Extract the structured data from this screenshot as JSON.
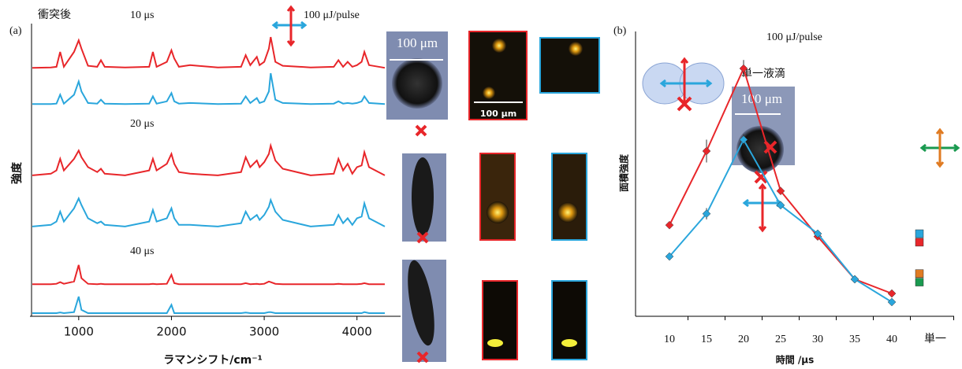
{
  "chart_data": [
    {
      "type": "spectra",
      "panel_label": "(a)",
      "x_label": "ラマンシフト/cm⁻¹",
      "y_label": "強度",
      "annotations": [
        "衝突後",
        "100 μJ/pulse",
        "100 μm",
        "100 μm"
      ],
      "xlim": [
        500,
        4300
      ],
      "xticks": [
        1000,
        2000,
        3000,
        4000
      ],
      "x": [
        500,
        700,
        760,
        800,
        840,
        950,
        1000,
        1030,
        1100,
        1200,
        1240,
        1280,
        1500,
        1760,
        1800,
        1840,
        1950,
        2000,
        2030,
        2080,
        2200,
        2500,
        2750,
        2800,
        2850,
        2920,
        2950,
        3000,
        3050,
        3070,
        3120,
        3200,
        3500,
        3750,
        3800,
        3850,
        3900,
        3950,
        4000,
        4050,
        4080,
        4130,
        4300
      ],
      "groups": [
        {
          "label": "10 μs",
          "series": [
            {
              "color": "#e8262a",
              "values": [
                0.02,
                0.03,
                0.05,
                0.5,
                0.05,
                0.5,
                0.85,
                0.6,
                0.08,
                0.05,
                0.25,
                0.05,
                0.03,
                0.05,
                0.5,
                0.05,
                0.2,
                0.55,
                0.3,
                0.05,
                0.1,
                0.03,
                0.05,
                0.4,
                0.1,
                0.35,
                0.1,
                0.2,
                0.6,
                0.95,
                0.2,
                0.08,
                0.03,
                0.05,
                0.25,
                0.05,
                0.2,
                0.05,
                0.1,
                0.2,
                0.5,
                0.1,
                0.02
              ]
            },
            {
              "color": "#2aa6dc",
              "values": [
                0.02,
                0.02,
                0.03,
                0.3,
                0.03,
                0.3,
                0.7,
                0.4,
                0.05,
                0.03,
                0.15,
                0.03,
                0.02,
                0.03,
                0.25,
                0.03,
                0.1,
                0.35,
                0.1,
                0.03,
                0.05,
                0.02,
                0.03,
                0.25,
                0.05,
                0.2,
                0.05,
                0.1,
                0.4,
                0.95,
                0.15,
                0.05,
                0.02,
                0.03,
                0.1,
                0.03,
                0.05,
                0.03,
                0.05,
                0.1,
                0.25,
                0.05,
                0.02
              ]
            }
          ]
        },
        {
          "label": "20 μs",
          "series": [
            {
              "color": "#e8262a",
              "values": [
                0.05,
                0.1,
                0.2,
                0.55,
                0.2,
                0.55,
                0.8,
                0.6,
                0.3,
                0.15,
                0.25,
                0.1,
                0.05,
                0.2,
                0.55,
                0.2,
                0.4,
                0.7,
                0.4,
                0.15,
                0.1,
                0.05,
                0.15,
                0.6,
                0.3,
                0.5,
                0.3,
                0.45,
                0.7,
                0.95,
                0.5,
                0.25,
                0.05,
                0.1,
                0.55,
                0.2,
                0.4,
                0.1,
                0.3,
                0.35,
                0.75,
                0.3,
                0.05
              ]
            },
            {
              "color": "#2aa6dc",
              "values": [
                0.05,
                0.1,
                0.2,
                0.5,
                0.2,
                0.6,
                0.9,
                0.7,
                0.3,
                0.15,
                0.2,
                0.1,
                0.05,
                0.2,
                0.55,
                0.2,
                0.3,
                0.6,
                0.3,
                0.1,
                0.1,
                0.05,
                0.15,
                0.5,
                0.25,
                0.4,
                0.25,
                0.4,
                0.65,
                0.85,
                0.5,
                0.25,
                0.05,
                0.1,
                0.4,
                0.15,
                0.3,
                0.1,
                0.3,
                0.35,
                0.75,
                0.3,
                0.05
              ]
            }
          ]
        },
        {
          "label": "40 μs",
          "series": [
            {
              "color": "#e8262a",
              "values": [
                0.02,
                0.02,
                0.03,
                0.08,
                0.03,
                0.1,
                0.6,
                0.2,
                0.03,
                0.02,
                0.03,
                0.02,
                0.02,
                0.02,
                0.03,
                0.02,
                0.03,
                0.3,
                0.05,
                0.02,
                0.02,
                0.02,
                0.02,
                0.05,
                0.02,
                0.03,
                0.02,
                0.03,
                0.1,
                0.08,
                0.03,
                0.02,
                0.02,
                0.02,
                0.03,
                0.02,
                0.02,
                0.02,
                0.02,
                0.03,
                0.05,
                0.02,
                0.02
              ]
            },
            {
              "color": "#2aa6dc",
              "values": [
                0,
                0,
                0,
                0.02,
                0,
                0.03,
                0.5,
                0.1,
                0,
                0,
                0,
                0,
                0,
                0,
                0,
                0,
                0,
                0.25,
                0,
                0,
                0,
                0,
                0,
                0.02,
                0,
                0,
                0,
                0,
                0.03,
                0.03,
                0,
                0,
                0,
                0,
                0,
                0,
                0,
                0,
                0,
                0,
                0.03,
                0,
                0
              ]
            }
          ]
        }
      ]
    },
    {
      "type": "line",
      "panel_label": "(b)",
      "x_label": "時間 /μs",
      "y_label": "面積強度",
      "annotations": [
        "100 μJ/pulse",
        "単一液滴",
        "100 μm"
      ],
      "categories": [
        "10",
        "15",
        "20",
        "25",
        "30",
        "35",
        "40",
        "単一"
      ],
      "ylim": [
        0,
        100
      ],
      "series": [
        {
          "color": "#e8262a",
          "values": [
            32,
            58,
            87,
            44,
            28,
            13,
            8,
            26
          ],
          "errors": [
            null,
            4,
            3,
            null,
            null,
            null,
            null,
            null
          ]
        },
        {
          "color": "#2aa6dc",
          "values": [
            21,
            36,
            62,
            39,
            29,
            13,
            5,
            29
          ],
          "errors": [
            null,
            2,
            2,
            null,
            null,
            null,
            null,
            null
          ]
        },
        {
          "color": "#e07b22",
          "values": [
            null,
            null,
            null,
            null,
            null,
            null,
            null,
            15
          ],
          "errors": [
            null,
            null,
            null,
            null,
            null,
            null,
            null,
            null
          ]
        },
        {
          "color": "#1a9a50",
          "values": [
            null,
            null,
            null,
            null,
            null,
            null,
            null,
            12
          ],
          "errors": [
            null,
            null,
            null,
            null,
            null,
            null,
            null,
            null
          ]
        }
      ]
    }
  ]
}
